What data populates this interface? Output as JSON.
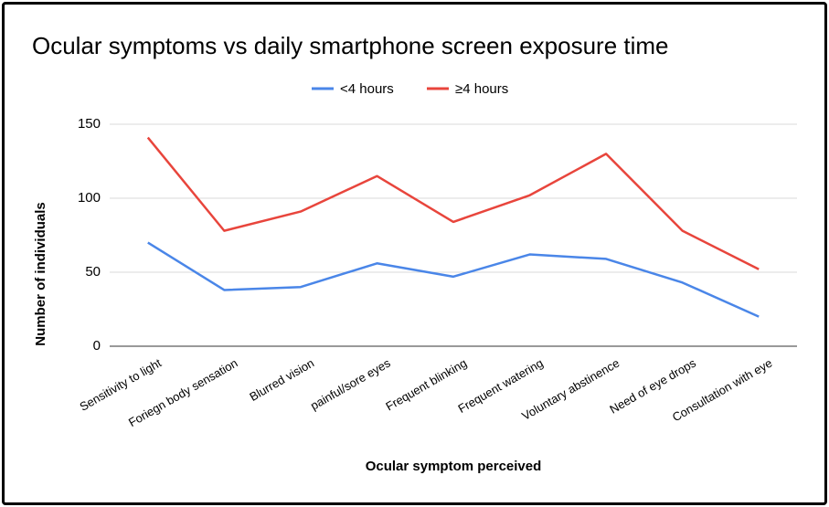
{
  "chart_data": {
    "type": "line",
    "title": "Ocular symptoms vs daily smartphone screen exposure time",
    "x_label": "Ocular symptom perceived",
    "y_label": "Number of individuals",
    "categories": [
      "Sensitivity to light",
      "Foriegn body sensation",
      "Blurred vision",
      "painful/sore eyes",
      "Frequent blinking",
      "Frequent watering",
      "Voluntary abstinence",
      "Need of eye drops",
      "Consultation with eye"
    ],
    "series": [
      {
        "name": "<4 hours",
        "color": "#4a86e8",
        "values": [
          70,
          38,
          40,
          56,
          47,
          62,
          59,
          43,
          20
        ]
      },
      {
        "name": "≥4 hours",
        "color": "#e8453c",
        "values": [
          141,
          78,
          91,
          115,
          84,
          102,
          130,
          78,
          52
        ]
      }
    ],
    "ylim": [
      0,
      150
    ],
    "yticks": [
      0,
      50,
      100,
      150
    ],
    "grid": true,
    "legend": "top"
  }
}
